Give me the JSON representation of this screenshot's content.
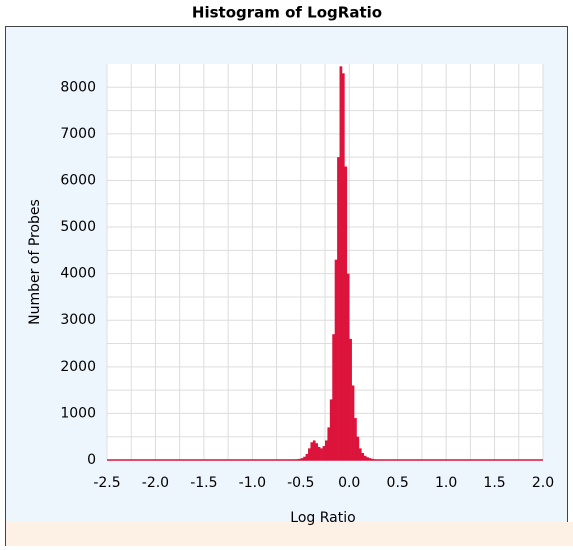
{
  "chart_data": {
    "type": "histogram",
    "title": "Histogram of LogRatio",
    "x_label": "Log Ratio",
    "y_label": "Number of Probes",
    "color": "#dc143c",
    "bins": [
      -0.6,
      -0.575,
      -0.55,
      -0.525,
      -0.5,
      -0.475,
      -0.45,
      -0.425,
      -0.4,
      -0.375,
      -0.35,
      -0.325,
      -0.3,
      -0.275,
      -0.25,
      -0.225,
      -0.2,
      -0.175,
      -0.15,
      -0.125,
      -0.1,
      -0.075,
      -0.05,
      -0.025,
      0,
      0.025,
      0.05,
      0.075,
      0.1,
      0.125,
      0.15,
      0.175,
      0.2,
      0.225,
      0.25,
      0.275,
      0.3
    ],
    "values": [
      5,
      10,
      15,
      25,
      40,
      70,
      130,
      250,
      380,
      420,
      360,
      280,
      250,
      300,
      420,
      700,
      1300,
      2700,
      4300,
      6500,
      8450,
      8300,
      6300,
      4000,
      2600,
      1600,
      900,
      500,
      250,
      150,
      90,
      60,
      40,
      25,
      15,
      8
    ],
    "xlim": [
      -2.5,
      2.0
    ],
    "ylim": [
      0,
      8500
    ],
    "xticks": [
      -2.5,
      {
        "value": -2,
        "label": "-2.0"
      },
      -1.5,
      {
        "value": -1,
        "label": "-1.0"
      },
      -0.5,
      {
        "value": 0,
        "label": "0.0"
      },
      0.5,
      {
        "value": 1,
        "label": "1.0"
      },
      1.5,
      {
        "value": 2,
        "label": "2.0"
      }
    ],
    "yticks": [
      0,
      1000,
      2000,
      3000,
      4000,
      5000,
      6000,
      7000,
      8000
    ],
    "x_minor_ticks": [
      -2.25,
      -1.75,
      -1.25,
      -0.75,
      -0.25,
      0.25,
      0.75,
      1.25,
      1.75
    ],
    "y_minor_ticks": [
      500,
      1500,
      2500,
      3500,
      4500,
      5500,
      6500,
      7500
    ],
    "grid": true
  }
}
